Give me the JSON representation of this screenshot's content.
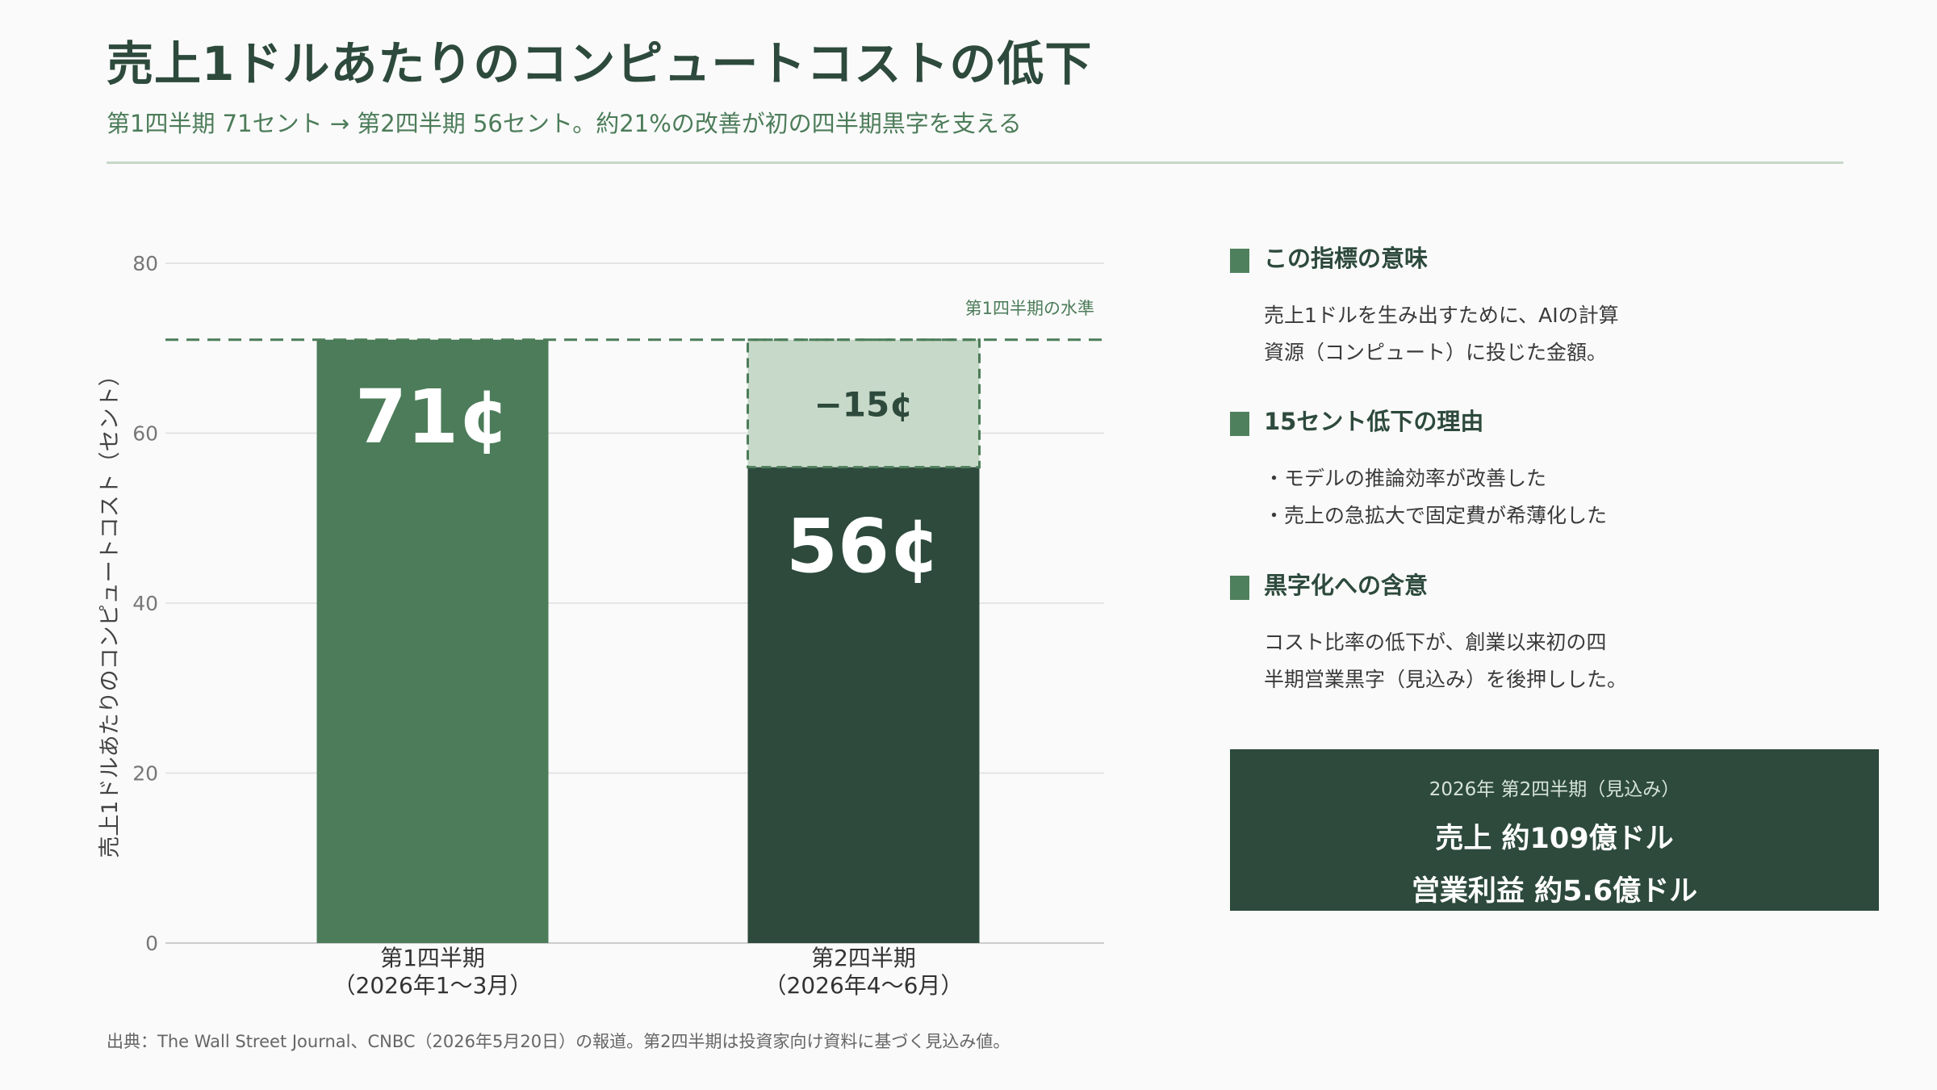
{
  "title": "売上1ドルあたりのコンピュートコストの低下",
  "subtitle": "第1四半期 71セント → 第2四半期 56セント。約21%の改善が初の四半期黒字を支える",
  "chart_data": {
    "type": "bar",
    "categories": [
      [
        "第1四半期",
        "（2026年1〜3月）"
      ],
      [
        "第2四半期",
        "（2026年4〜6月）"
      ]
    ],
    "values": [
      71,
      56
    ],
    "value_labels": [
      "71¢",
      "56¢"
    ],
    "reduction": {
      "value": 15,
      "label": "−15¢"
    },
    "reference_line": {
      "value": 71,
      "label": "第1四半期の水準"
    },
    "ylabel": "売上1ドルあたりのコンピュートコスト（セント）",
    "xlabel": "",
    "ylim": [
      0,
      80
    ],
    "yticks": [
      0,
      20,
      40,
      60,
      80
    ],
    "grid": true,
    "colors": {
      "bar_q1": "#4c7c59",
      "bar_q2": "#2d4a3c",
      "reduction_fill": "#c7d9c9",
      "reference_line": "#4c7c59",
      "grid": "#e4e4e4",
      "axis": "#cccccc",
      "tick_text": "#777777"
    }
  },
  "sidebar": {
    "sections": [
      {
        "heading": "この指標の意味",
        "lines": [
          "売上1ドルを生み出すために、AIの計算",
          "資源（コンピュート）に投じた金額。"
        ]
      },
      {
        "heading": "15セント低下の理由",
        "lines": [
          "・モデルの推論効率が改善した",
          "・売上の急拡大で固定費が希薄化した"
        ]
      },
      {
        "heading": "黒字化への含意",
        "lines": [
          "コスト比率の低下が、創業以来初の四",
          "半期営業黒字（見込み）を後押しした。"
        ]
      }
    ],
    "box": {
      "label": "2026年 第2四半期（見込み）",
      "line1": "売上 約109億ドル",
      "line2": "営業利益 約5.6億ドル"
    }
  },
  "source": "出典：The Wall Street Journal、CNBC（2026年5月20日）の報道。第2四半期は投資家向け資料に基づく見込み値。"
}
